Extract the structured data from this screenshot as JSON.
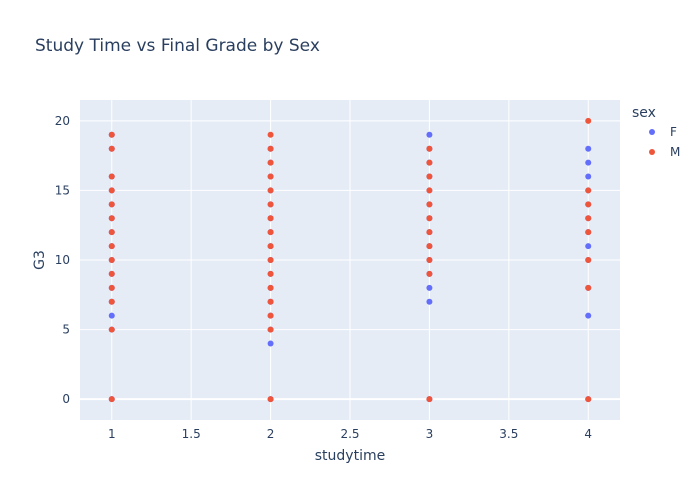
{
  "chart_data": {
    "type": "scatter",
    "title": "Study Time vs Final Grade by Sex",
    "xlabel": "studytime",
    "ylabel": "G3",
    "xlim": [
      0.8,
      4.2
    ],
    "ylim": [
      -1.5,
      21.5
    ],
    "xticks": [
      1,
      1.5,
      2,
      2.5,
      3,
      3.5,
      4
    ],
    "xtick_labels": [
      "1",
      "1.5",
      "2",
      "2.5",
      "3",
      "3.5",
      "4"
    ],
    "yticks": [
      0,
      5,
      10,
      15,
      20
    ],
    "ytick_labels": [
      "0",
      "5",
      "10",
      "15",
      "20"
    ],
    "grid": true,
    "legend": {
      "title": "sex",
      "placement": "top-right"
    },
    "series": [
      {
        "name": "F",
        "color": "#636efa",
        "points": [
          [
            1,
            0
          ],
          [
            1,
            5
          ],
          [
            1,
            6
          ],
          [
            1,
            7
          ],
          [
            1,
            8
          ],
          [
            1,
            9
          ],
          [
            1,
            10
          ],
          [
            1,
            11
          ],
          [
            1,
            12
          ],
          [
            1,
            13
          ],
          [
            1,
            14
          ],
          [
            1,
            15
          ],
          [
            1,
            16
          ],
          [
            1,
            18
          ],
          [
            1,
            19
          ],
          [
            2,
            0
          ],
          [
            2,
            4
          ],
          [
            2,
            5
          ],
          [
            2,
            6
          ],
          [
            2,
            7
          ],
          [
            2,
            8
          ],
          [
            2,
            9
          ],
          [
            2,
            10
          ],
          [
            2,
            11
          ],
          [
            2,
            12
          ],
          [
            2,
            13
          ],
          [
            2,
            14
          ],
          [
            2,
            15
          ],
          [
            2,
            16
          ],
          [
            2,
            17
          ],
          [
            2,
            18
          ],
          [
            3,
            0
          ],
          [
            3,
            7
          ],
          [
            3,
            8
          ],
          [
            3,
            9
          ],
          [
            3,
            10
          ],
          [
            3,
            11
          ],
          [
            3,
            12
          ],
          [
            3,
            13
          ],
          [
            3,
            14
          ],
          [
            3,
            15
          ],
          [
            3,
            16
          ],
          [
            3,
            17
          ],
          [
            3,
            18
          ],
          [
            3,
            19
          ],
          [
            4,
            0
          ],
          [
            4,
            6
          ],
          [
            4,
            8
          ],
          [
            4,
            10
          ],
          [
            4,
            11
          ],
          [
            4,
            12
          ],
          [
            4,
            13
          ],
          [
            4,
            14
          ],
          [
            4,
            15
          ],
          [
            4,
            16
          ],
          [
            4,
            17
          ],
          [
            4,
            18
          ]
        ]
      },
      {
        "name": "M",
        "color": "#ef553b",
        "points": [
          [
            1,
            0
          ],
          [
            1,
            5
          ],
          [
            1,
            7
          ],
          [
            1,
            8
          ],
          [
            1,
            9
          ],
          [
            1,
            10
          ],
          [
            1,
            11
          ],
          [
            1,
            12
          ],
          [
            1,
            13
          ],
          [
            1,
            14
          ],
          [
            1,
            15
          ],
          [
            1,
            16
          ],
          [
            1,
            18
          ],
          [
            1,
            19
          ],
          [
            2,
            0
          ],
          [
            2,
            5
          ],
          [
            2,
            6
          ],
          [
            2,
            7
          ],
          [
            2,
            8
          ],
          [
            2,
            9
          ],
          [
            2,
            10
          ],
          [
            2,
            11
          ],
          [
            2,
            12
          ],
          [
            2,
            13
          ],
          [
            2,
            14
          ],
          [
            2,
            15
          ],
          [
            2,
            16
          ],
          [
            2,
            17
          ],
          [
            2,
            18
          ],
          [
            2,
            19
          ],
          [
            3,
            0
          ],
          [
            3,
            9
          ],
          [
            3,
            10
          ],
          [
            3,
            11
          ],
          [
            3,
            12
          ],
          [
            3,
            13
          ],
          [
            3,
            14
          ],
          [
            3,
            15
          ],
          [
            3,
            16
          ],
          [
            3,
            17
          ],
          [
            3,
            18
          ],
          [
            4,
            0
          ],
          [
            4,
            8
          ],
          [
            4,
            10
          ],
          [
            4,
            12
          ],
          [
            4,
            13
          ],
          [
            4,
            14
          ],
          [
            4,
            15
          ],
          [
            4,
            20
          ]
        ]
      }
    ]
  }
}
